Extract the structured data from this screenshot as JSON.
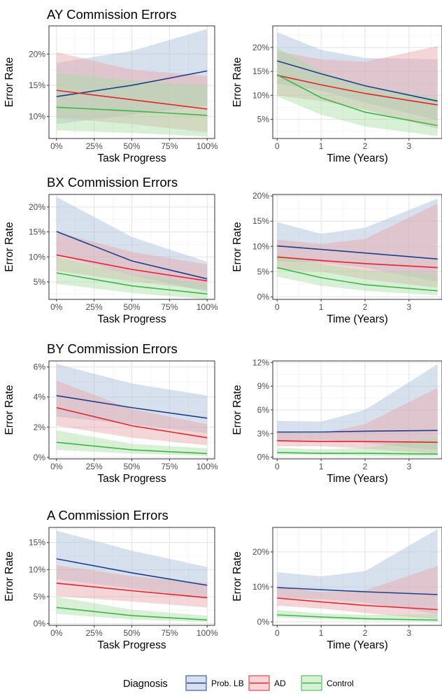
{
  "figure": {
    "legend": {
      "title": "Diagnosis",
      "position": "bottom",
      "entries": [
        "Prob. LB",
        "AD",
        "Control"
      ]
    },
    "colors": {
      "Prob. LB": "#1F3F8C",
      "AD": "#E3262B",
      "Control": "#3DB548",
      "band_Prob. LB": "#A7BCD8",
      "band_AD": "#E7A5A8",
      "band_Control": "#A6DDA4"
    }
  },
  "chart_data": [
    {
      "type": "line",
      "row": 0,
      "col": 0,
      "title": "AY Commission Errors",
      "xlabel": "Task Progress",
      "ylabel": "Error Rate",
      "xlim": [
        -0.05,
        1.05
      ],
      "ylim": [
        0.065,
        0.245
      ],
      "x_ticks": [
        0,
        0.25,
        0.5,
        0.75,
        1
      ],
      "x_tick_labels": [
        "0%",
        "25%",
        "50%",
        "75%",
        "100%"
      ],
      "y_ticks": [
        0.1,
        0.15,
        0.2
      ],
      "y_tick_labels": [
        "10%",
        "15%",
        "20%"
      ],
      "x": [
        0,
        0.5,
        1
      ],
      "series": [
        {
          "name": "Prob. LB",
          "values": [
            0.132,
            0.15,
            0.173
          ],
          "lower": [
            0.088,
            0.103,
            0.118
          ],
          "upper": [
            0.186,
            0.205,
            0.24
          ]
        },
        {
          "name": "AD",
          "values": [
            0.142,
            0.127,
            0.112
          ],
          "lower": [
            0.098,
            0.088,
            0.075
          ],
          "upper": [
            0.203,
            0.175,
            0.165
          ]
        },
        {
          "name": "Control",
          "values": [
            0.115,
            0.109,
            0.102
          ],
          "lower": [
            0.078,
            0.074,
            0.068
          ],
          "upper": [
            0.17,
            0.158,
            0.15
          ]
        }
      ]
    },
    {
      "type": "line",
      "row": 0,
      "col": 1,
      "title": "",
      "xlabel": "Time (Years)",
      "ylabel": "Error Rate",
      "xlim": [
        -0.1,
        3.75
      ],
      "ylim": [
        0.01,
        0.245
      ],
      "x_ticks": [
        0,
        1,
        2,
        3
      ],
      "x_tick_labels": [
        "0",
        "1",
        "2",
        "3"
      ],
      "y_ticks": [
        0.05,
        0.1,
        0.15,
        0.2
      ],
      "y_tick_labels": [
        "5%",
        "10%",
        "15%",
        "20%"
      ],
      "x": [
        0,
        1,
        2,
        3.65
      ],
      "series": [
        {
          "name": "Prob. LB",
          "values": [
            0.172,
            0.145,
            0.12,
            0.088
          ],
          "lower": [
            0.125,
            0.11,
            0.085,
            0.048
          ],
          "upper": [
            0.232,
            0.195,
            0.178,
            0.175
          ]
        },
        {
          "name": "AD",
          "values": [
            0.142,
            0.122,
            0.104,
            0.08
          ],
          "lower": [
            0.1,
            0.088,
            0.07,
            0.03
          ],
          "upper": [
            0.192,
            0.175,
            0.17,
            0.203
          ]
        },
        {
          "name": "Control",
          "values": [
            0.143,
            0.095,
            0.065,
            0.037
          ],
          "lower": [
            0.098,
            0.06,
            0.035,
            0.015
          ],
          "upper": [
            0.2,
            0.15,
            0.12,
            0.095
          ]
        }
      ]
    },
    {
      "type": "line",
      "row": 1,
      "col": 0,
      "title": "BX Commission Errors",
      "xlabel": "Task Progress",
      "ylabel": "Error Rate",
      "xlim": [
        -0.05,
        1.05
      ],
      "ylim": [
        0.015,
        0.225
      ],
      "x_ticks": [
        0,
        0.25,
        0.5,
        0.75,
        1
      ],
      "x_tick_labels": [
        "0%",
        "25%",
        "50%",
        "75%",
        "100%"
      ],
      "y_ticks": [
        0.05,
        0.1,
        0.15,
        0.2
      ],
      "y_tick_labels": [
        "5%",
        "10%",
        "15%",
        "20%"
      ],
      "x": [
        0,
        0.5,
        1
      ],
      "series": [
        {
          "name": "Prob. LB",
          "values": [
            0.151,
            0.092,
            0.056
          ],
          "lower": [
            0.105,
            0.063,
            0.03
          ],
          "upper": [
            0.22,
            0.14,
            0.09
          ]
        },
        {
          "name": "AD",
          "values": [
            0.104,
            0.075,
            0.052
          ],
          "lower": [
            0.072,
            0.051,
            0.034
          ],
          "upper": [
            0.15,
            0.11,
            0.085
          ]
        },
        {
          "name": "Control",
          "values": [
            0.068,
            0.042,
            0.026
          ],
          "lower": [
            0.046,
            0.028,
            0.015
          ],
          "upper": [
            0.1,
            0.065,
            0.045
          ]
        }
      ]
    },
    {
      "type": "line",
      "row": 1,
      "col": 1,
      "title": "",
      "xlabel": "Time (Years)",
      "ylabel": "Error Rate",
      "xlim": [
        -0.1,
        3.75
      ],
      "ylim": [
        -0.005,
        0.203
      ],
      "x_ticks": [
        0,
        1,
        2,
        3
      ],
      "x_tick_labels": [
        "0",
        "1",
        "2",
        "3"
      ],
      "y_ticks": [
        0,
        0.05,
        0.1,
        0.15,
        0.2
      ],
      "y_tick_labels": [
        "0%",
        "5%",
        "10%",
        "15%",
        "20%"
      ],
      "x": [
        0,
        1,
        2,
        3.65
      ],
      "series": [
        {
          "name": "Prob. LB",
          "values": [
            0.101,
            0.094,
            0.087,
            0.075
          ],
          "lower": [
            0.07,
            0.068,
            0.058,
            0.03
          ],
          "upper": [
            0.148,
            0.125,
            0.137,
            0.195
          ]
        },
        {
          "name": "AD",
          "values": [
            0.079,
            0.072,
            0.066,
            0.058
          ],
          "lower": [
            0.055,
            0.05,
            0.035,
            0.018
          ],
          "upper": [
            0.113,
            0.105,
            0.115,
            0.185
          ]
        },
        {
          "name": "Control",
          "values": [
            0.058,
            0.038,
            0.024,
            0.012
          ],
          "lower": [
            0.04,
            0.022,
            0.012,
            0.003
          ],
          "upper": [
            0.085,
            0.065,
            0.053,
            0.045
          ]
        }
      ]
    },
    {
      "type": "line",
      "row": 2,
      "col": 0,
      "title": "BY Commission Errors",
      "xlabel": "Task Progress",
      "ylabel": "Error Rate",
      "xlim": [
        -0.05,
        1.05
      ],
      "ylim": [
        -0.001,
        0.064
      ],
      "x_ticks": [
        0,
        0.25,
        0.5,
        0.75,
        1
      ],
      "x_tick_labels": [
        "0%",
        "25%",
        "50%",
        "75%",
        "100%"
      ],
      "y_ticks": [
        0,
        0.02,
        0.04,
        0.06
      ],
      "y_tick_labels": [
        "0%",
        "2%",
        "4%",
        "6%"
      ],
      "x": [
        0,
        0.5,
        1
      ],
      "series": [
        {
          "name": "Prob. LB",
          "values": [
            0.041,
            0.033,
            0.026
          ],
          "lower": [
            0.027,
            0.022,
            0.016
          ],
          "upper": [
            0.062,
            0.049,
            0.041
          ]
        },
        {
          "name": "AD",
          "values": [
            0.033,
            0.021,
            0.013
          ],
          "lower": [
            0.021,
            0.013,
            0.008
          ],
          "upper": [
            0.051,
            0.032,
            0.022
          ]
        },
        {
          "name": "Control",
          "values": [
            0.01,
            0.005,
            0.0025
          ],
          "lower": [
            0.005,
            0.0025,
            0.001
          ],
          "upper": [
            0.018,
            0.009,
            0.006
          ]
        }
      ]
    },
    {
      "type": "line",
      "row": 2,
      "col": 1,
      "title": "",
      "xlabel": "Time (Years)",
      "ylabel": "Error Rate",
      "xlim": [
        -0.1,
        3.75
      ],
      "ylim": [
        -0.002,
        0.122
      ],
      "x_ticks": [
        0,
        1,
        2,
        3
      ],
      "x_tick_labels": [
        "0",
        "1",
        "2",
        "3"
      ],
      "y_ticks": [
        0,
        0.03,
        0.06,
        0.09,
        0.12
      ],
      "y_tick_labels": [
        "0%",
        "3%",
        "6%",
        "9%",
        "12%"
      ],
      "x": [
        0,
        1,
        2,
        3.65
      ],
      "series": [
        {
          "name": "Prob. LB",
          "values": [
            0.032,
            0.032,
            0.033,
            0.034
          ],
          "lower": [
            0.021,
            0.022,
            0.018,
            0.009
          ],
          "upper": [
            0.046,
            0.045,
            0.06,
            0.118
          ]
        },
        {
          "name": "AD",
          "values": [
            0.021,
            0.02,
            0.02,
            0.019
          ],
          "lower": [
            0.014,
            0.014,
            0.011,
            0.004
          ],
          "upper": [
            0.032,
            0.03,
            0.042,
            0.088
          ]
        },
        {
          "name": "Control",
          "values": [
            0.006,
            0.005,
            0.005,
            0.004
          ],
          "lower": [
            0.003,
            0.003,
            0.002,
            0.001
          ],
          "upper": [
            0.012,
            0.01,
            0.012,
            0.025
          ]
        }
      ]
    },
    {
      "type": "line",
      "row": 3,
      "col": 0,
      "title": "A Commission Errors",
      "xlabel": "Task Progress",
      "ylabel": "Error Rate",
      "xlim": [
        -0.05,
        1.05
      ],
      "ylim": [
        -0.003,
        0.178
      ],
      "x_ticks": [
        0,
        0.25,
        0.5,
        0.75,
        1
      ],
      "x_tick_labels": [
        "0%",
        "25%",
        "50%",
        "75%",
        "100%"
      ],
      "y_ticks": [
        0,
        0.05,
        0.1,
        0.15
      ],
      "y_tick_labels": [
        "0%",
        "5%",
        "10%",
        "15%"
      ],
      "x": [
        0,
        0.5,
        1
      ],
      "series": [
        {
          "name": "Prob. LB",
          "values": [
            0.12,
            0.094,
            0.071
          ],
          "lower": [
            0.082,
            0.065,
            0.047
          ],
          "upper": [
            0.172,
            0.135,
            0.105
          ]
        },
        {
          "name": "AD",
          "values": [
            0.075,
            0.061,
            0.048
          ],
          "lower": [
            0.051,
            0.041,
            0.03
          ],
          "upper": [
            0.108,
            0.088,
            0.075
          ]
        },
        {
          "name": "Control",
          "values": [
            0.03,
            0.015,
            0.007
          ],
          "lower": [
            0.018,
            0.008,
            0.003
          ],
          "upper": [
            0.05,
            0.026,
            0.015
          ]
        }
      ]
    },
    {
      "type": "line",
      "row": 3,
      "col": 1,
      "title": "",
      "xlabel": "Time (Years)",
      "ylabel": "Error Rate",
      "xlim": [
        -0.1,
        3.75
      ],
      "ylim": [
        -0.01,
        0.27
      ],
      "x_ticks": [
        0,
        1,
        2,
        3
      ],
      "x_tick_labels": [
        "0",
        "1",
        "2",
        "3"
      ],
      "y_ticks": [
        0,
        0.1,
        0.2
      ],
      "y_tick_labels": [
        "0%",
        "10%",
        "20%"
      ],
      "x": [
        0,
        1,
        2,
        3.65
      ],
      "series": [
        {
          "name": "Prob. LB",
          "values": [
            0.098,
            0.092,
            0.086,
            0.078
          ],
          "lower": [
            0.068,
            0.065,
            0.055,
            0.022
          ],
          "upper": [
            0.142,
            0.13,
            0.145,
            0.265
          ]
        },
        {
          "name": "AD",
          "values": [
            0.068,
            0.057,
            0.047,
            0.035
          ],
          "lower": [
            0.046,
            0.038,
            0.025,
            0.008
          ],
          "upper": [
            0.101,
            0.085,
            0.09,
            0.16
          ]
        },
        {
          "name": "Control",
          "values": [
            0.02,
            0.014,
            0.009,
            0.005
          ],
          "lower": [
            0.012,
            0.008,
            0.004,
            0.001
          ],
          "upper": [
            0.034,
            0.024,
            0.02,
            0.022
          ]
        }
      ]
    }
  ]
}
